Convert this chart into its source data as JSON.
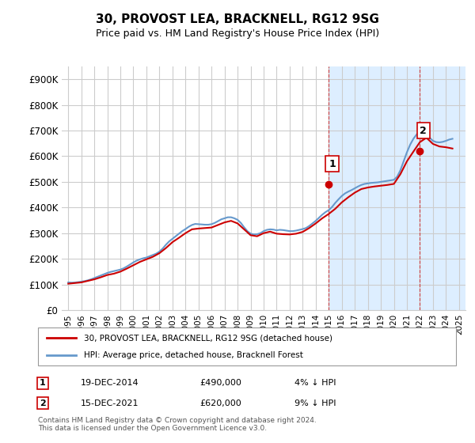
{
  "title": "30, PROVOST LEA, BRACKNELL, RG12 9SG",
  "subtitle": "Price paid vs. HM Land Registry's House Price Index (HPI)",
  "ylabel_ticks": [
    "£0",
    "£100K",
    "£200K",
    "£300K",
    "£400K",
    "£500K",
    "£600K",
    "£700K",
    "£800K",
    "£900K"
  ],
  "ytick_values": [
    0,
    100000,
    200000,
    300000,
    400000,
    500000,
    600000,
    700000,
    800000,
    900000
  ],
  "ylim": [
    0,
    950000
  ],
  "xlim_start": 1995,
  "xlim_end": 2025.5,
  "xticks": [
    1995,
    1996,
    1997,
    1998,
    1999,
    2000,
    2001,
    2002,
    2003,
    2004,
    2005,
    2006,
    2007,
    2008,
    2009,
    2010,
    2011,
    2012,
    2013,
    2014,
    2015,
    2016,
    2017,
    2018,
    2019,
    2020,
    2021,
    2022,
    2023,
    2024,
    2025
  ],
  "purchase1_x": 2014.96,
  "purchase1_y": 490000,
  "purchase1_label": "1",
  "purchase1_date": "19-DEC-2014",
  "purchase1_price": "£490,000",
  "purchase1_hpi": "4% ↓ HPI",
  "purchase2_x": 2021.96,
  "purchase2_y": 620000,
  "purchase2_label": "2",
  "purchase2_date": "15-DEC-2021",
  "purchase2_price": "£620,000",
  "purchase2_hpi": "9% ↓ HPI",
  "line1_color": "#cc0000",
  "line2_color": "#6699cc",
  "bg_color": "#ffffff",
  "shaded_region_color": "#ddeeff",
  "grid_color": "#cccccc",
  "legend1": "30, PROVOST LEA, BRACKNELL, RG12 9SG (detached house)",
  "legend2": "HPI: Average price, detached house, Bracknell Forest",
  "footer": "Contains HM Land Registry data © Crown copyright and database right 2024.\nThis data is licensed under the Open Government Licence v3.0.",
  "hpi_data_x": [
    1995.0,
    1995.25,
    1995.5,
    1995.75,
    1996.0,
    1996.25,
    1996.5,
    1996.75,
    1997.0,
    1997.25,
    1997.5,
    1997.75,
    1998.0,
    1998.25,
    1998.5,
    1998.75,
    1999.0,
    1999.25,
    1999.5,
    1999.75,
    2000.0,
    2000.25,
    2000.5,
    2000.75,
    2001.0,
    2001.25,
    2001.5,
    2001.75,
    2002.0,
    2002.25,
    2002.5,
    2002.75,
    2003.0,
    2003.25,
    2003.5,
    2003.75,
    2004.0,
    2004.25,
    2004.5,
    2004.75,
    2005.0,
    2005.25,
    2005.5,
    2005.75,
    2006.0,
    2006.25,
    2006.5,
    2006.75,
    2007.0,
    2007.25,
    2007.5,
    2007.75,
    2008.0,
    2008.25,
    2008.5,
    2008.75,
    2009.0,
    2009.25,
    2009.5,
    2009.75,
    2010.0,
    2010.25,
    2010.5,
    2010.75,
    2011.0,
    2011.25,
    2011.5,
    2011.75,
    2012.0,
    2012.25,
    2012.5,
    2012.75,
    2013.0,
    2013.25,
    2013.5,
    2013.75,
    2014.0,
    2014.25,
    2014.5,
    2014.75,
    2015.0,
    2015.25,
    2015.5,
    2015.75,
    2016.0,
    2016.25,
    2016.5,
    2016.75,
    2017.0,
    2017.25,
    2017.5,
    2017.75,
    2018.0,
    2018.25,
    2018.5,
    2018.75,
    2019.0,
    2019.25,
    2019.5,
    2019.75,
    2020.0,
    2020.25,
    2020.5,
    2020.75,
    2021.0,
    2021.25,
    2021.5,
    2021.75,
    2022.0,
    2022.25,
    2022.5,
    2022.75,
    2023.0,
    2023.25,
    2023.5,
    2023.75,
    2024.0,
    2024.25,
    2024.5
  ],
  "hpi_data_y": [
    108000,
    107000,
    107500,
    109000,
    111000,
    113000,
    116000,
    120000,
    125000,
    130000,
    135000,
    140000,
    145000,
    149000,
    152000,
    155000,
    158000,
    163000,
    170000,
    178000,
    186000,
    193000,
    198000,
    202000,
    205000,
    210000,
    215000,
    220000,
    228000,
    240000,
    255000,
    268000,
    278000,
    288000,
    298000,
    308000,
    316000,
    325000,
    332000,
    336000,
    335000,
    334000,
    333000,
    333000,
    335000,
    340000,
    347000,
    354000,
    358000,
    362000,
    362000,
    358000,
    352000,
    340000,
    323000,
    308000,
    298000,
    295000,
    296000,
    300000,
    308000,
    313000,
    315000,
    314000,
    311000,
    313000,
    312000,
    310000,
    308000,
    308000,
    310000,
    313000,
    316000,
    320000,
    328000,
    338000,
    348000,
    360000,
    372000,
    382000,
    390000,
    402000,
    418000,
    432000,
    445000,
    455000,
    462000,
    468000,
    475000,
    482000,
    488000,
    492000,
    494000,
    496000,
    497000,
    498000,
    500000,
    502000,
    504000,
    506000,
    508000,
    520000,
    545000,
    580000,
    615000,
    645000,
    668000,
    685000,
    700000,
    700000,
    688000,
    672000,
    660000,
    655000,
    654000,
    656000,
    660000,
    665000,
    668000
  ],
  "price_data_x": [
    1995.0,
    1996.0,
    1997.0,
    1997.5,
    1998.0,
    1998.5,
    1999.0,
    1999.5,
    2000.0,
    2000.5,
    2001.0,
    2001.5,
    2002.0,
    2002.5,
    2003.0,
    2003.5,
    2004.0,
    2004.5,
    2005.0,
    2006.0,
    2006.5,
    2007.0,
    2007.5,
    2008.0,
    2008.5,
    2009.0,
    2009.5,
    2010.0,
    2010.5,
    2011.0,
    2011.5,
    2012.0,
    2012.5,
    2013.0,
    2013.5,
    2014.0,
    2014.5,
    2015.0,
    2015.5,
    2016.0,
    2016.5,
    2017.0,
    2017.5,
    2018.0,
    2018.5,
    2019.0,
    2019.5,
    2020.0,
    2020.5,
    2021.0,
    2021.5,
    2022.0,
    2022.5,
    2023.0,
    2023.5,
    2024.0,
    2024.5
  ],
  "price_data_y": [
    103000,
    108000,
    120000,
    128000,
    137000,
    142000,
    150000,
    162000,
    175000,
    188000,
    198000,
    208000,
    222000,
    242000,
    265000,
    282000,
    300000,
    315000,
    318000,
    322000,
    332000,
    342000,
    348000,
    338000,
    315000,
    292000,
    288000,
    300000,
    306000,
    298000,
    296000,
    295000,
    298000,
    305000,
    320000,
    338000,
    358000,
    375000,
    395000,
    420000,
    440000,
    458000,
    472000,
    478000,
    482000,
    485000,
    488000,
    492000,
    530000,
    580000,
    618000,
    655000,
    672000,
    648000,
    638000,
    635000,
    630000
  ]
}
